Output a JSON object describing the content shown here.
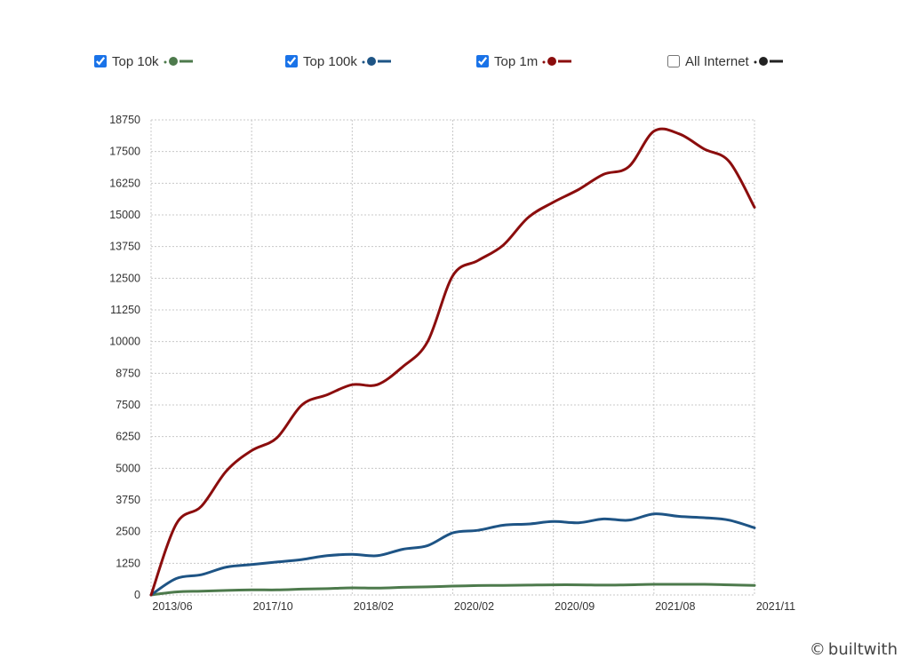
{
  "legend": [
    {
      "label": "Top 10k",
      "checked": true,
      "color": "#4d7a4c"
    },
    {
      "label": "Top 100k",
      "checked": true,
      "color": "#1e5485"
    },
    {
      "label": "Top 1m",
      "checked": true,
      "color": "#8b0d0d"
    },
    {
      "label": "All Internet",
      "checked": false,
      "color": "#222222"
    }
  ],
  "credit": {
    "text": "builtwith",
    "icon": "copyright-icon",
    "symbol": "©"
  },
  "chart_data": {
    "type": "line",
    "title": "",
    "xlabel": "",
    "ylabel": "",
    "ylim": [
      0,
      18750
    ],
    "yticks": [
      0,
      1250,
      2500,
      3750,
      5000,
      6250,
      7500,
      8750,
      10000,
      11250,
      12500,
      13750,
      15000,
      16250,
      17500,
      18750
    ],
    "xticks": [
      "2013/06",
      "2017/10",
      "2018/02",
      "2020/02",
      "2020/09",
      "2021/08",
      "2021/11"
    ],
    "x": [
      0,
      0.25,
      0.5,
      0.75,
      1,
      1.25,
      1.5,
      1.75,
      2,
      2.25,
      2.5,
      2.75,
      3,
      3.25,
      3.5,
      3.75,
      4,
      4.25,
      4.5,
      4.75,
      5,
      5.25,
      5.5,
      5.75,
      6
    ],
    "series": [
      {
        "name": "Top 10k",
        "color": "#4d7a4c",
        "values": [
          0,
          120,
          150,
          180,
          200,
          200,
          230,
          250,
          280,
          270,
          300,
          320,
          350,
          370,
          380,
          390,
          400,
          400,
          390,
          400,
          420,
          420,
          420,
          400,
          380
        ]
      },
      {
        "name": "Top 100k",
        "color": "#1e5485",
        "values": [
          0,
          650,
          800,
          1100,
          1200,
          1300,
          1400,
          1550,
          1600,
          1550,
          1800,
          1950,
          2450,
          2550,
          2750,
          2800,
          2900,
          2850,
          3000,
          2950,
          3200,
          3100,
          3050,
          2950,
          2650
        ]
      },
      {
        "name": "Top 1m",
        "color": "#8b0d0d",
        "values": [
          0,
          2800,
          3500,
          4900,
          5700,
          6200,
          7500,
          7900,
          8300,
          8300,
          9000,
          10000,
          12600,
          13200,
          13800,
          14900,
          15500,
          16000,
          16600,
          16900,
          18300,
          18200,
          17600,
          17100,
          15300
        ]
      }
    ]
  }
}
